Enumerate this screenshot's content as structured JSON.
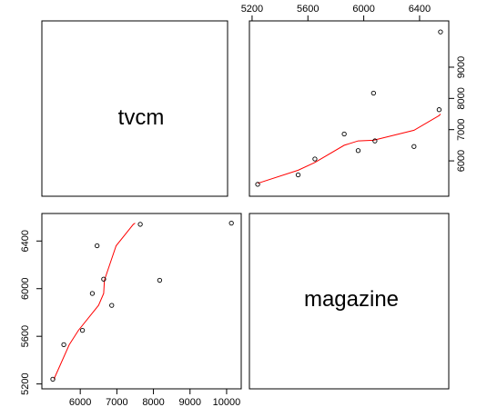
{
  "chart_data": {
    "type": "scatter",
    "title": "",
    "variables": [
      "tvcm",
      "magazine"
    ],
    "points": [
      {
        "tvcm": 5240,
        "magazine": 5250
      },
      {
        "tvcm": 5530,
        "magazine": 5550
      },
      {
        "tvcm": 5650,
        "magazine": 6060
      },
      {
        "tvcm": 5860,
        "magazine": 6860
      },
      {
        "tvcm": 5960,
        "magazine": 6330
      },
      {
        "tvcm": 6070,
        "magazine": 8170
      },
      {
        "tvcm": 6080,
        "magazine": 6640
      },
      {
        "tvcm": 6360,
        "magazine": 6460
      },
      {
        "tvcm": 6540,
        "magazine": 7640
      },
      {
        "tvcm": 6550,
        "magazine": 10130
      }
    ],
    "smooth": {
      "color": "#ff0000",
      "tvcm": [
        5240,
        5530,
        5650,
        5860,
        5960,
        6070,
        6080,
        6360,
        6540,
        6550
      ],
      "magazine": [
        5280,
        5700,
        5950,
        6500,
        6640,
        6660,
        6670,
        6980,
        7450,
        7500
      ]
    },
    "axes": {
      "tvcm": {
        "ticks": [
          5200,
          5600,
          6000,
          6400
        ],
        "range": [
          5220,
          6570
        ]
      },
      "magazine": {
        "ticks": [
          6000,
          7000,
          8000,
          9000
        ],
        "range": [
          5100,
          10250
        ]
      }
    },
    "grid": false,
    "point_color": "#000000"
  }
}
